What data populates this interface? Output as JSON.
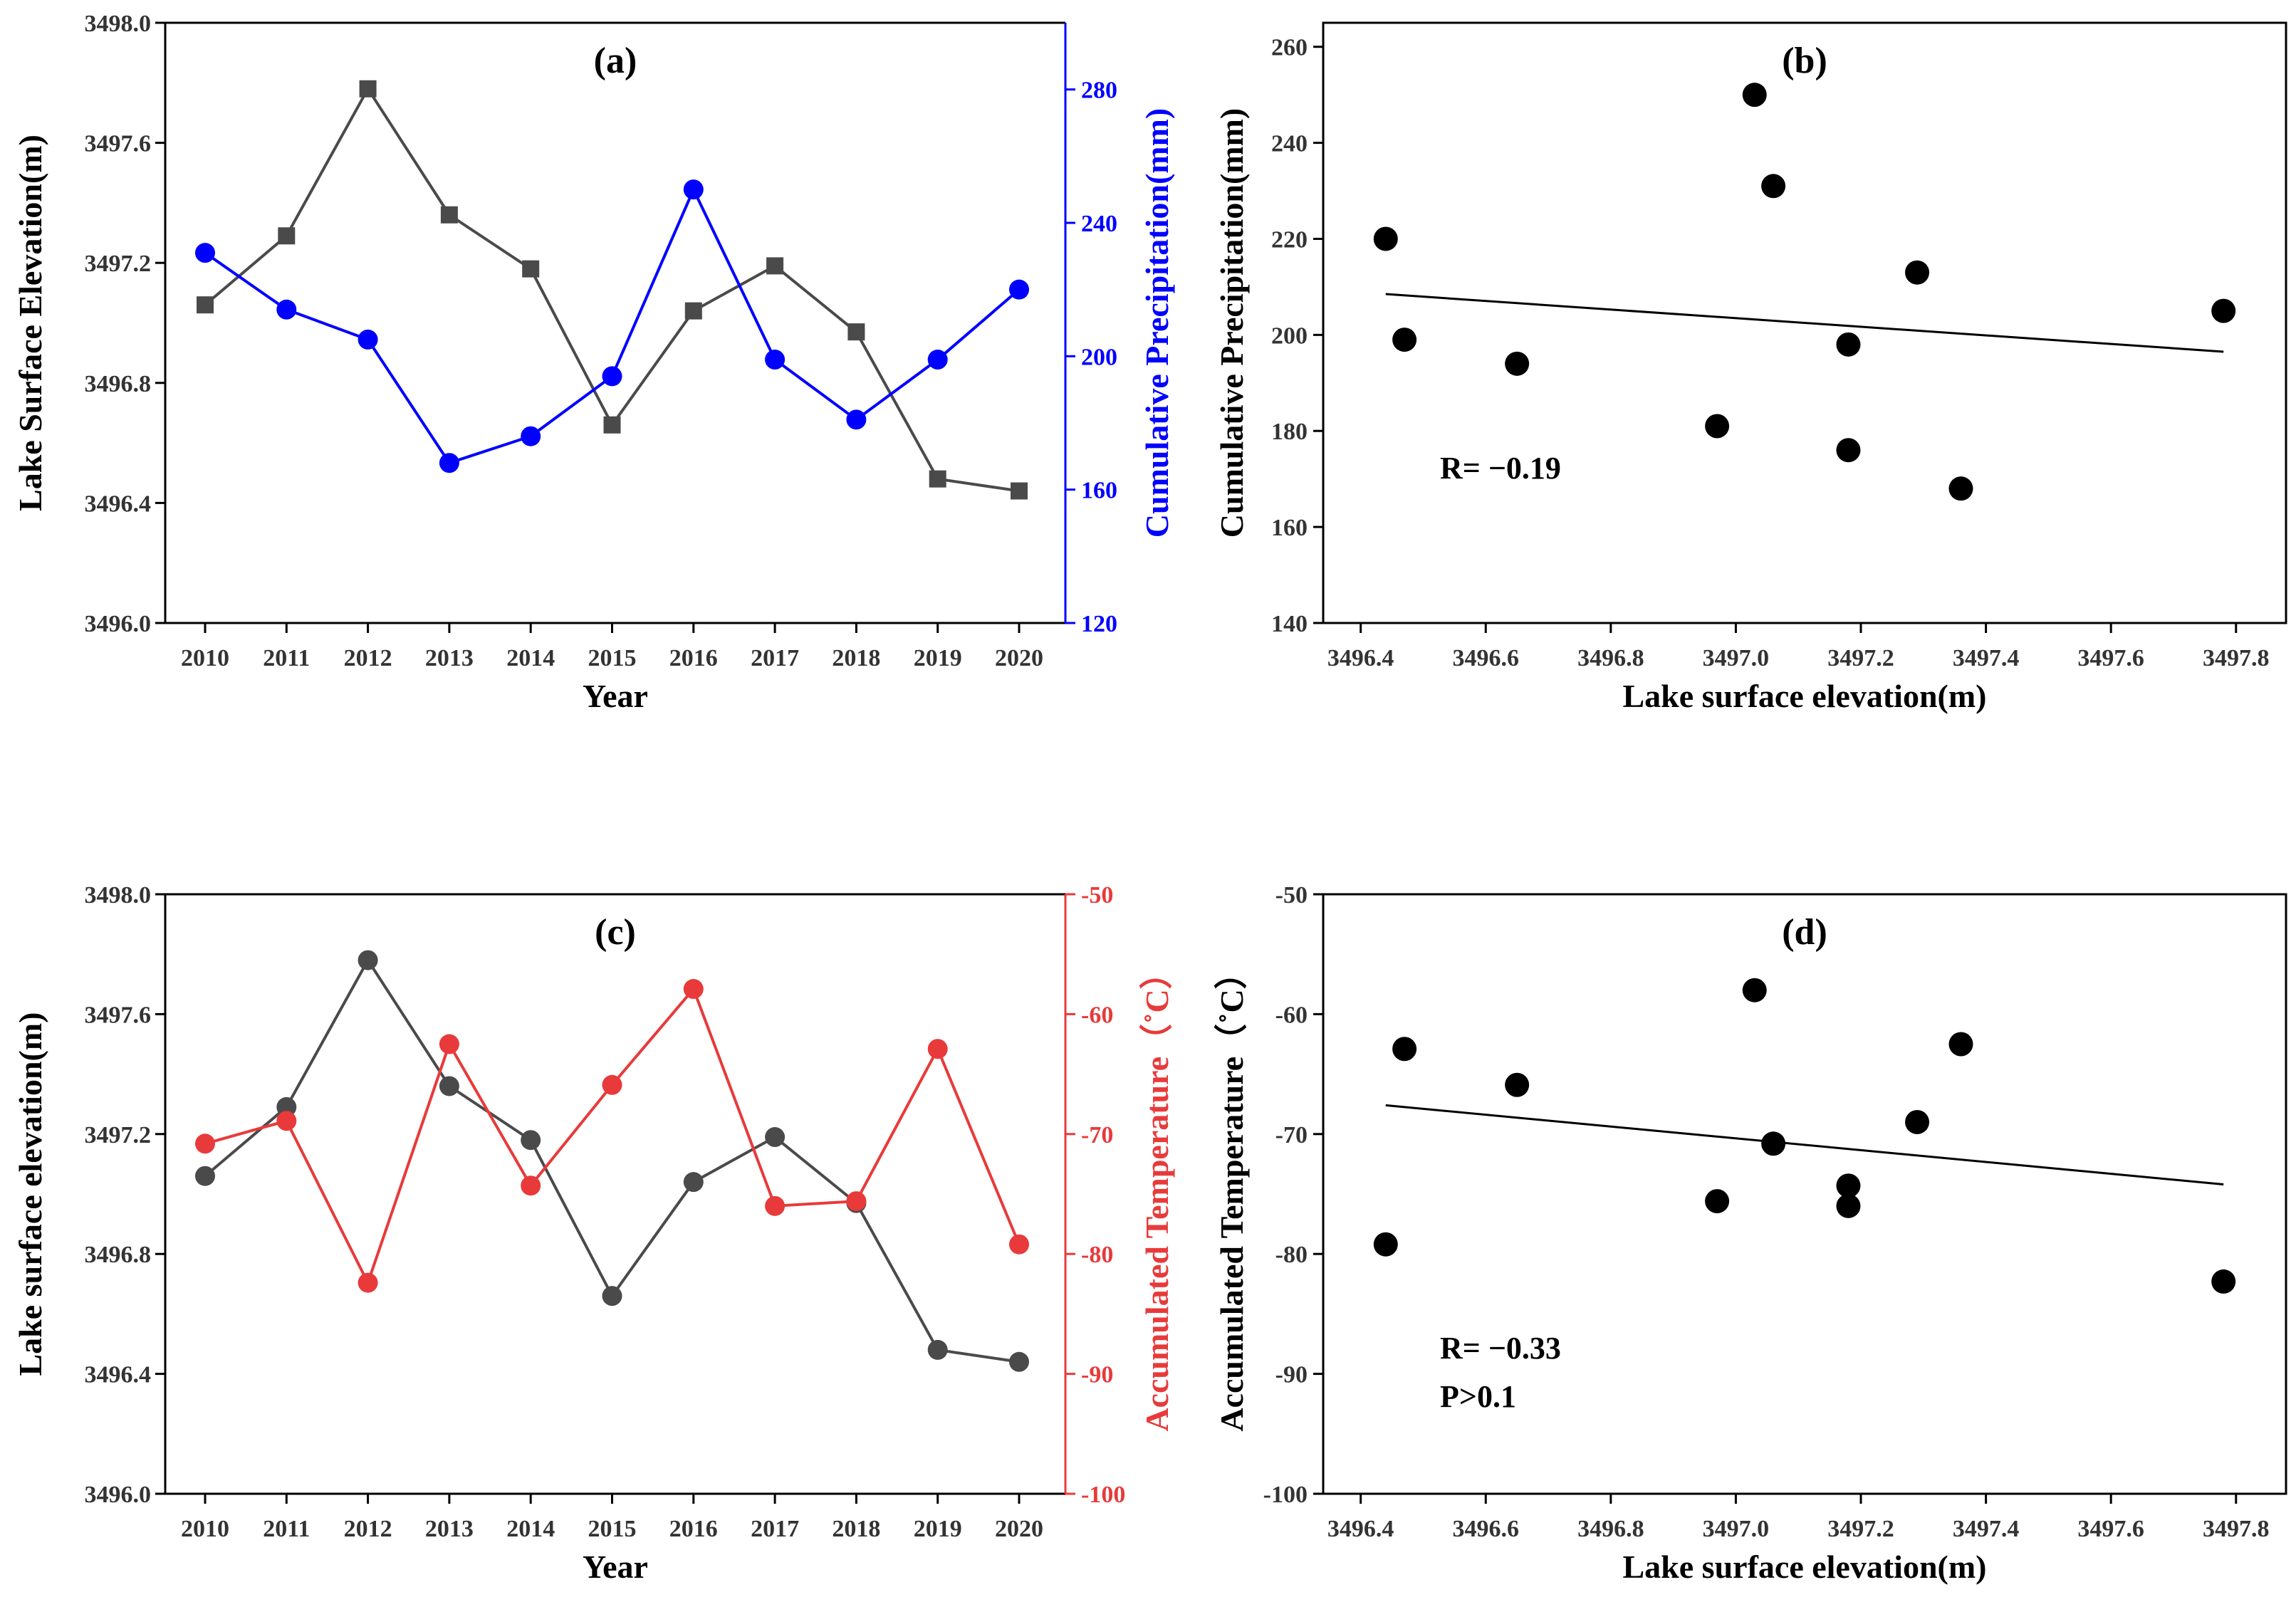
{
  "chart_data": [
    {
      "panel": "a",
      "type": "line",
      "title": "(a)",
      "xlabel": "Year",
      "ylabel": "Lake Surface Elevation(m)",
      "y2label": "Cumulative Precipitation(mm)",
      "categories": [
        "2010",
        "2011",
        "2012",
        "2013",
        "2014",
        "2015",
        "2016",
        "2017",
        "2018",
        "2019",
        "2020"
      ],
      "ylim": [
        3496.0,
        3498.0
      ],
      "yticks": [
        "3496.0",
        "3496.4",
        "3496.8",
        "3497.2",
        "3497.6",
        "3498.0"
      ],
      "y2lim": [
        120,
        300
      ],
      "y2ticks": [
        "120",
        "160",
        "200",
        "240",
        "280"
      ],
      "series": [
        {
          "name": "Lake Surface Elevation",
          "axis": "left",
          "marker": "square",
          "color": "#4a4a4a",
          "values": [
            3497.06,
            3497.29,
            3497.78,
            3497.36,
            3497.18,
            3496.66,
            3497.04,
            3497.19,
            3496.97,
            3496.48,
            3496.44
          ]
        },
        {
          "name": "Cumulative Precipitation",
          "axis": "right",
          "marker": "circle",
          "color": "#0000ff",
          "values": [
            231,
            214,
            205,
            168,
            176,
            194,
            250,
            199,
            181,
            199,
            220
          ]
        }
      ]
    },
    {
      "panel": "b",
      "type": "scatter",
      "title": "(b)",
      "xlabel": "Lake surface elevation(m)",
      "ylabel": "Cumulative Precipitation(mm)",
      "xlim": [
        3496.34,
        3497.88
      ],
      "xticks": [
        "3496.4",
        "3496.6",
        "3496.8",
        "3497.0",
        "3497.2",
        "3497.4",
        "3497.6",
        "3497.8"
      ],
      "ylim": [
        140,
        265
      ],
      "yticks": [
        "140",
        "160",
        "180",
        "200",
        "220",
        "240",
        "260"
      ],
      "points": {
        "x": [
          3496.44,
          3496.47,
          3496.65,
          3496.97,
          3497.03,
          3497.06,
          3497.18,
          3497.18,
          3497.29,
          3497.36,
          3497.78
        ],
        "y": [
          220,
          199,
          194,
          181,
          250,
          231,
          198,
          176,
          213,
          168,
          205
        ]
      },
      "trend": {
        "x": [
          3496.44,
          3497.78
        ],
        "y": [
          208.5,
          196.5
        ]
      },
      "annotations": [
        "R= −0.19"
      ]
    },
    {
      "panel": "c",
      "type": "line",
      "title": "(c)",
      "xlabel": "Year",
      "ylabel": "Lake surface elevation(m)",
      "y2label": "Accumulated Temperature（˚C）",
      "categories": [
        "2010",
        "2011",
        "2012",
        "2013",
        "2014",
        "2015",
        "2016",
        "2017",
        "2018",
        "2019",
        "2020"
      ],
      "ylim": [
        3496.0,
        3498.0
      ],
      "yticks": [
        "3496.0",
        "3496.4",
        "3496.8",
        "3497.2",
        "3497.6",
        "3498.0"
      ],
      "y2lim": [
        -100,
        -50
      ],
      "y2ticks": [
        "-100",
        "-90",
        "-80",
        "-70",
        "-60",
        "-50"
      ],
      "series": [
        {
          "name": "Lake surface elevation",
          "axis": "left",
          "marker": "circle",
          "color": "#4a4a4a",
          "values": [
            3497.06,
            3497.29,
            3497.78,
            3497.36,
            3497.18,
            3496.66,
            3497.04,
            3497.19,
            3496.97,
            3496.48,
            3496.44
          ]
        },
        {
          "name": "Accumulated Temperature",
          "axis": "right",
          "marker": "circle",
          "color": "#e83a3a",
          "values": [
            -70.8,
            -68.9,
            -82.4,
            -62.5,
            -74.3,
            -65.9,
            -57.9,
            -76.0,
            -75.6,
            -62.9,
            -79.2
          ]
        }
      ]
    },
    {
      "panel": "d",
      "type": "scatter",
      "title": "(d)",
      "xlabel": "Lake surface elevation(m)",
      "ylabel": "Accumulated Temperature（˚C）",
      "xlim": [
        3496.34,
        3497.88
      ],
      "xticks": [
        "3496.4",
        "3496.6",
        "3496.8",
        "3497.0",
        "3497.2",
        "3497.4",
        "3497.6",
        "3497.8"
      ],
      "ylim": [
        -100,
        -50
      ],
      "yticks": [
        "-100",
        "-90",
        "-80",
        "-70",
        "-60",
        "-50"
      ],
      "points": {
        "x": [
          3496.44,
          3496.47,
          3496.65,
          3496.97,
          3497.03,
          3497.06,
          3497.18,
          3497.18,
          3497.29,
          3497.36,
          3497.78
        ],
        "y": [
          -79.2,
          -62.9,
          -65.9,
          -75.6,
          -58.0,
          -70.8,
          -74.3,
          -76.0,
          -69.0,
          -62.5,
          -82.3
        ]
      },
      "trend": {
        "x": [
          3496.44,
          3497.78
        ],
        "y": [
          -67.6,
          -74.2
        ]
      },
      "annotations": [
        "R= −0.33",
        "P>0.1"
      ]
    }
  ]
}
